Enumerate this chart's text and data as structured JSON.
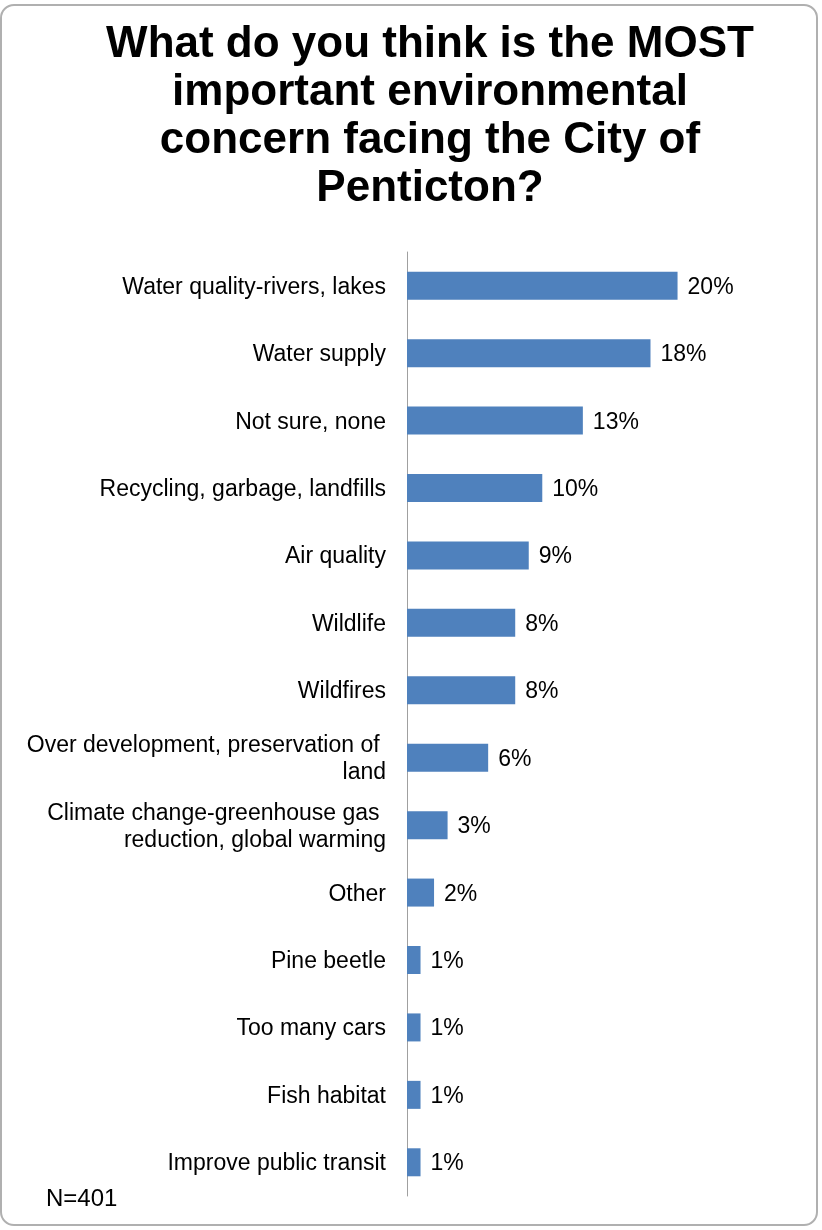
{
  "chart_data": {
    "type": "bar",
    "orientation": "horizontal",
    "title": "What do you think is the MOST important environmental concern facing the City of Penticton?",
    "categories": [
      "Water quality-rivers, lakes",
      "Water supply",
      "Not sure, none",
      "Recycling, garbage, landfills",
      "Air quality",
      "Wildlife",
      "Wildfires",
      "Over development, preservation of land",
      "Climate change-greenhouse gas reduction, global warming",
      "Other",
      "Pine beetle",
      "Too many cars",
      "Fish habitat",
      "Improve public transit"
    ],
    "values": [
      20,
      18,
      13,
      10,
      9,
      8,
      8,
      6,
      3,
      2,
      1,
      1,
      1,
      1
    ],
    "value_labels": [
      "20%",
      "18%",
      "13%",
      "10%",
      "9%",
      "8%",
      "8%",
      "6%",
      "3%",
      "2%",
      "1%",
      "1%",
      "1%",
      "1%"
    ],
    "color": "#4f81bd",
    "grid": false,
    "annotations": [
      "N=401"
    ]
  }
}
